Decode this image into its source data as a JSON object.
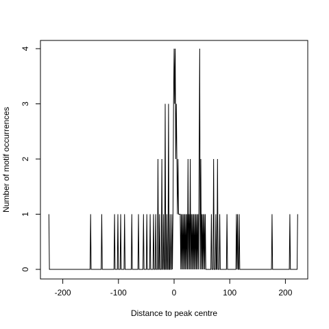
{
  "chart_data": {
    "type": "line",
    "xlabel": "Distance to peak centre",
    "ylabel": "Number of motif occurrences",
    "xlim": [
      -230,
      230
    ],
    "ylim": [
      0,
      4
    ],
    "x_ticks": [
      -200,
      -100,
      0,
      100,
      200
    ],
    "y_ticks": [
      0,
      1,
      2,
      3,
      4
    ],
    "x_tick_labels": [
      "-200",
      "-100",
      "0",
      "100",
      "200"
    ],
    "y_tick_labels": [
      "0",
      "1",
      "2",
      "3",
      "4"
    ],
    "grid": false,
    "series": [
      {
        "points": [
          [
            -225,
            1
          ],
          [
            -224,
            0
          ],
          [
            -151,
            0
          ],
          [
            -150,
            1
          ],
          [
            -149,
            0
          ],
          [
            -131,
            0
          ],
          [
            -130,
            1
          ],
          [
            -129,
            0
          ],
          [
            -108,
            0
          ],
          [
            -107,
            1
          ],
          [
            -106,
            0
          ],
          [
            -102,
            0
          ],
          [
            -101,
            1
          ],
          [
            -100,
            0
          ],
          [
            -97,
            0
          ],
          [
            -96,
            1
          ],
          [
            -95,
            0
          ],
          [
            -90,
            0
          ],
          [
            -89,
            1
          ],
          [
            -88,
            0
          ],
          [
            -77,
            0
          ],
          [
            -76,
            1
          ],
          [
            -75,
            0
          ],
          [
            -65,
            0
          ],
          [
            -64,
            1
          ],
          [
            -63,
            0
          ],
          [
            -56,
            0
          ],
          [
            -55,
            1
          ],
          [
            -54,
            0
          ],
          [
            -50,
            0
          ],
          [
            -49,
            1
          ],
          [
            -48,
            0
          ],
          [
            -44,
            0
          ],
          [
            -43,
            1
          ],
          [
            -42,
            0
          ],
          [
            -38,
            0
          ],
          [
            -37,
            1
          ],
          [
            -36,
            0
          ],
          [
            -34,
            0
          ],
          [
            -33,
            1
          ],
          [
            -32,
            0
          ],
          [
            -30,
            0
          ],
          [
            -29,
            2
          ],
          [
            -28,
            0
          ],
          [
            -27,
            0
          ],
          [
            -26,
            1
          ],
          [
            -25,
            0
          ],
          [
            -23,
            0
          ],
          [
            -22,
            2
          ],
          [
            -21,
            0
          ],
          [
            -20,
            0
          ],
          [
            -19,
            1
          ],
          [
            -18,
            0
          ],
          [
            -17,
            0
          ],
          [
            -16,
            3
          ],
          [
            -15,
            0
          ],
          [
            -14,
            0
          ],
          [
            -13,
            1
          ],
          [
            -12,
            0
          ],
          [
            -11,
            0
          ],
          [
            -10,
            3
          ],
          [
            -9,
            0
          ],
          [
            -8,
            0
          ],
          [
            -7,
            1
          ],
          [
            -6,
            0
          ],
          [
            -5,
            0
          ],
          [
            -4,
            1
          ],
          [
            -3,
            0
          ],
          [
            -2,
            1
          ],
          [
            -1,
            3
          ],
          [
            0,
            4
          ],
          [
            1,
            3
          ],
          [
            2,
            4
          ],
          [
            3,
            2
          ],
          [
            4,
            3
          ],
          [
            5,
            2
          ],
          [
            6,
            1
          ],
          [
            7,
            2
          ],
          [
            8,
            1
          ],
          [
            9,
            1
          ],
          [
            10,
            1
          ],
          [
            11,
            1
          ],
          [
            12,
            0
          ],
          [
            13,
            1
          ],
          [
            14,
            0
          ],
          [
            15,
            1
          ],
          [
            16,
            0
          ],
          [
            17,
            1
          ],
          [
            18,
            0
          ],
          [
            19,
            1
          ],
          [
            20,
            0
          ],
          [
            21,
            1
          ],
          [
            22,
            0
          ],
          [
            23,
            1
          ],
          [
            24,
            0
          ],
          [
            25,
            2
          ],
          [
            26,
            0
          ],
          [
            27,
            1
          ],
          [
            28,
            0
          ],
          [
            29,
            2
          ],
          [
            30,
            0
          ],
          [
            31,
            1
          ],
          [
            32,
            0
          ],
          [
            33,
            1
          ],
          [
            34,
            0
          ],
          [
            35,
            1
          ],
          [
            36,
            0
          ],
          [
            37,
            1
          ],
          [
            38,
            0
          ],
          [
            39,
            1
          ],
          [
            40,
            0
          ],
          [
            41,
            1
          ],
          [
            42,
            0
          ],
          [
            43,
            1
          ],
          [
            44,
            0
          ],
          [
            45,
            2
          ],
          [
            46,
            4
          ],
          [
            47,
            0
          ],
          [
            48,
            2
          ],
          [
            49,
            0
          ],
          [
            50,
            1
          ],
          [
            51,
            0
          ],
          [
            52,
            1
          ],
          [
            53,
            0
          ],
          [
            54,
            1
          ],
          [
            55,
            0
          ],
          [
            56,
            1
          ],
          [
            57,
            0
          ],
          [
            66,
            0
          ],
          [
            67,
            1
          ],
          [
            68,
            0
          ],
          [
            70,
            0
          ],
          [
            71,
            2
          ],
          [
            72,
            0
          ],
          [
            74,
            0
          ],
          [
            75,
            1
          ],
          [
            76,
            0
          ],
          [
            77,
            0
          ],
          [
            78,
            2
          ],
          [
            79,
            0
          ],
          [
            81,
            0
          ],
          [
            82,
            1
          ],
          [
            83,
            0
          ],
          [
            94,
            0
          ],
          [
            95,
            1
          ],
          [
            96,
            0
          ],
          [
            111,
            0
          ],
          [
            112,
            1
          ],
          [
            113,
            0
          ],
          [
            114,
            1
          ],
          [
            115,
            0
          ],
          [
            116,
            0
          ],
          [
            117,
            1
          ],
          [
            118,
            0
          ],
          [
            175,
            0
          ],
          [
            176,
            1
          ],
          [
            177,
            0
          ],
          [
            207,
            0
          ],
          [
            208,
            1
          ],
          [
            209,
            0
          ],
          [
            221,
            0
          ],
          [
            222,
            1
          ]
        ]
      }
    ]
  }
}
